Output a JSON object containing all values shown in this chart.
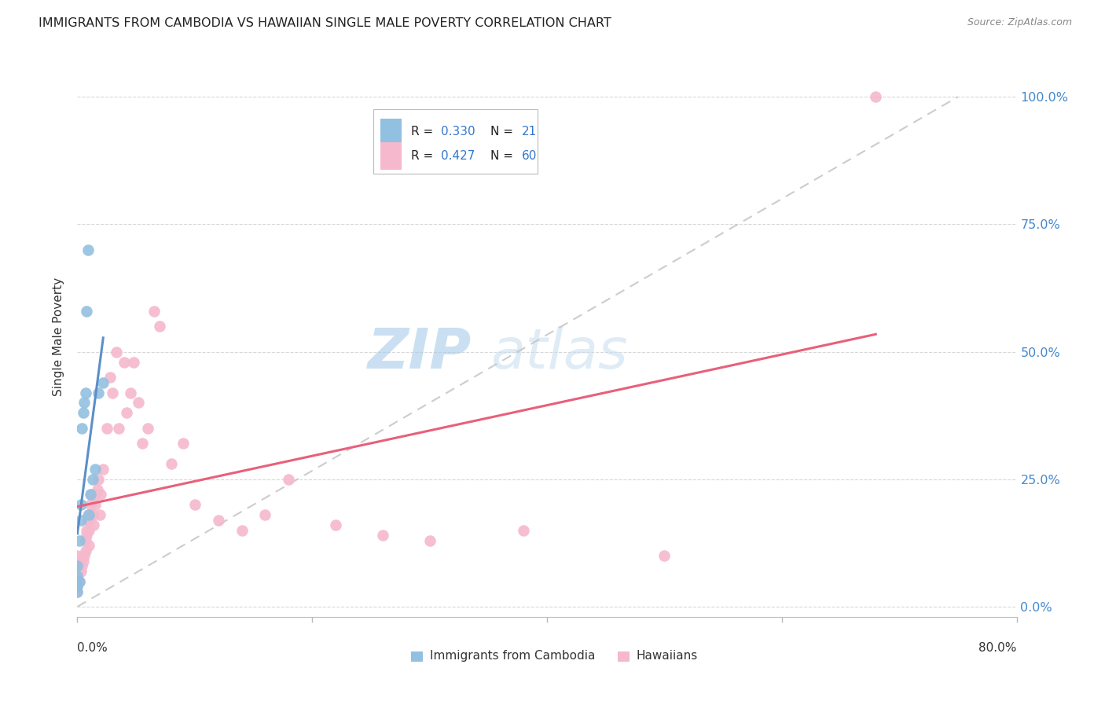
{
  "title": "IMMIGRANTS FROM CAMBODIA VS HAWAIIAN SINGLE MALE POVERTY CORRELATION CHART",
  "source": "Source: ZipAtlas.com",
  "ylabel": "Single Male Poverty",
  "ytick_labels": [
    "0.0%",
    "25.0%",
    "50.0%",
    "75.0%",
    "100.0%"
  ],
  "ytick_values": [
    0.0,
    0.25,
    0.5,
    0.75,
    1.0
  ],
  "xlim": [
    0.0,
    0.8
  ],
  "ylim": [
    -0.02,
    1.08
  ],
  "legend1_r": "0.330",
  "legend1_n": "21",
  "legend2_r": "0.427",
  "legend2_n": "60",
  "legend1_label": "Immigrants from Cambodia",
  "legend2_label": "Hawaiians",
  "color_blue": "#92c0e0",
  "color_pink": "#f5b8cc",
  "color_blue_line": "#5b8fc9",
  "color_pink_line": "#e8607a",
  "color_dashed": "#c0c0c0",
  "cambodia_x": [
    0.0,
    0.0,
    0.0,
    0.0,
    0.0,
    0.002,
    0.002,
    0.003,
    0.003,
    0.004,
    0.005,
    0.006,
    0.007,
    0.008,
    0.009,
    0.01,
    0.011,
    0.013,
    0.015,
    0.018,
    0.022
  ],
  "cambodia_y": [
    0.03,
    0.04,
    0.05,
    0.06,
    0.08,
    0.05,
    0.13,
    0.17,
    0.2,
    0.35,
    0.38,
    0.4,
    0.42,
    0.58,
    0.7,
    0.18,
    0.22,
    0.25,
    0.27,
    0.42,
    0.44
  ],
  "hawaiian_x": [
    0.0,
    0.0,
    0.0,
    0.0,
    0.0,
    0.0,
    0.0,
    0.0,
    0.002,
    0.003,
    0.004,
    0.005,
    0.006,
    0.007,
    0.007,
    0.008,
    0.008,
    0.009,
    0.009,
    0.01,
    0.01,
    0.01,
    0.011,
    0.012,
    0.013,
    0.014,
    0.015,
    0.016,
    0.017,
    0.018,
    0.019,
    0.02,
    0.022,
    0.025,
    0.028,
    0.03,
    0.033,
    0.035,
    0.04,
    0.042,
    0.045,
    0.048,
    0.052,
    0.055,
    0.06,
    0.065,
    0.07,
    0.08,
    0.09,
    0.1,
    0.12,
    0.14,
    0.16,
    0.18,
    0.22,
    0.26,
    0.3,
    0.38,
    0.5,
    0.68
  ],
  "hawaiian_y": [
    0.03,
    0.04,
    0.05,
    0.06,
    0.07,
    0.08,
    0.09,
    0.1,
    0.05,
    0.07,
    0.08,
    0.09,
    0.1,
    0.11,
    0.13,
    0.14,
    0.15,
    0.17,
    0.18,
    0.12,
    0.15,
    0.17,
    0.2,
    0.22,
    0.18,
    0.16,
    0.2,
    0.22,
    0.23,
    0.25,
    0.18,
    0.22,
    0.27,
    0.35,
    0.45,
    0.42,
    0.5,
    0.35,
    0.48,
    0.38,
    0.42,
    0.48,
    0.4,
    0.32,
    0.35,
    0.58,
    0.55,
    0.28,
    0.32,
    0.2,
    0.17,
    0.15,
    0.18,
    0.25,
    0.16,
    0.14,
    0.13,
    0.15,
    0.1,
    1.0
  ]
}
